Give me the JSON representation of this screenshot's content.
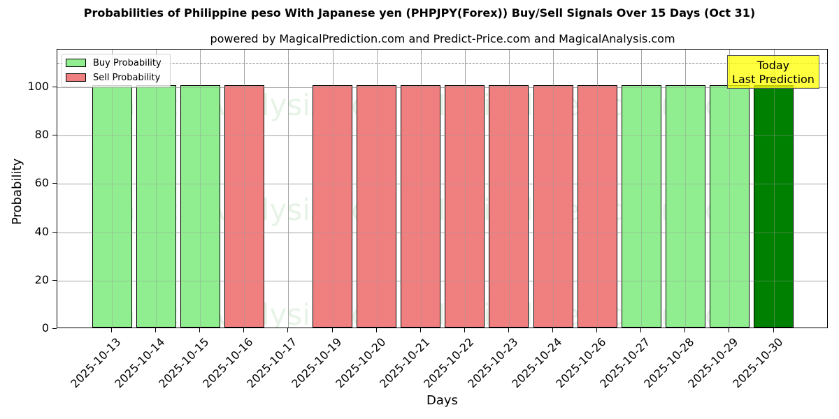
{
  "title": "Probabilities of Philippine peso With Japanese yen (PHPJPY(Forex)) Buy/Sell Signals Over 15 Days (Oct 31)",
  "subtitle": "powered by MagicalPrediction.com and Predict-Price.com and MagicalAnalysis.com",
  "legend": {
    "buy_label": "Buy Probability",
    "sell_label": "Sell Probability"
  },
  "annotation": {
    "line1": "Today",
    "line2": "Last Prediction"
  },
  "colors": {
    "buy": "#90ee90",
    "sell": "#f08080",
    "today": "#008000",
    "annotation_bg": "#ffff00",
    "refline": "#808080"
  },
  "watermarks": [
    "MagicalAnalysis.com",
    "MagicalPrediction.com"
  ],
  "chart_data": {
    "type": "bar",
    "title": "Probabilities of Philippine peso With Japanese yen (PHPJPY(Forex)) Buy/Sell Signals Over 15 Days (Oct 31)",
    "subtitle": "powered by MagicalPrediction.com and Predict-Price.com and MagicalAnalysis.com",
    "xlabel": "Days",
    "ylabel": "Probability",
    "ylim": [
      0,
      115
    ],
    "yticks": [
      0,
      20,
      40,
      60,
      80,
      100
    ],
    "grid": true,
    "legend_position": "upper left",
    "reference_line": {
      "y": 110,
      "style": "dashed"
    },
    "categories": [
      "2025-10-13",
      "2025-10-14",
      "2025-10-15",
      "2025-10-16",
      "2025-10-17",
      "2025-10-19",
      "2025-10-20",
      "2025-10-21",
      "2025-10-22",
      "2025-10-23",
      "2025-10-24",
      "2025-10-26",
      "2025-10-27",
      "2025-10-28",
      "2025-10-29",
      "2025-10-30"
    ],
    "series": [
      {
        "name": "Buy Probability",
        "values": [
          100,
          100,
          100,
          0,
          0,
          0,
          0,
          0,
          0,
          0,
          0,
          0,
          100,
          100,
          100,
          100
        ]
      },
      {
        "name": "Sell Probability",
        "values": [
          0,
          0,
          0,
          100,
          0,
          100,
          100,
          100,
          100,
          100,
          100,
          100,
          0,
          0,
          0,
          0
        ]
      }
    ],
    "bar_signal": [
      "buy",
      "buy",
      "buy",
      "sell",
      "none",
      "sell",
      "sell",
      "sell",
      "sell",
      "sell",
      "sell",
      "sell",
      "buy",
      "buy",
      "buy",
      "today"
    ],
    "annotations": [
      {
        "text": "Today\nLast Prediction",
        "x": "2025-10-30",
        "y": 110
      }
    ]
  }
}
